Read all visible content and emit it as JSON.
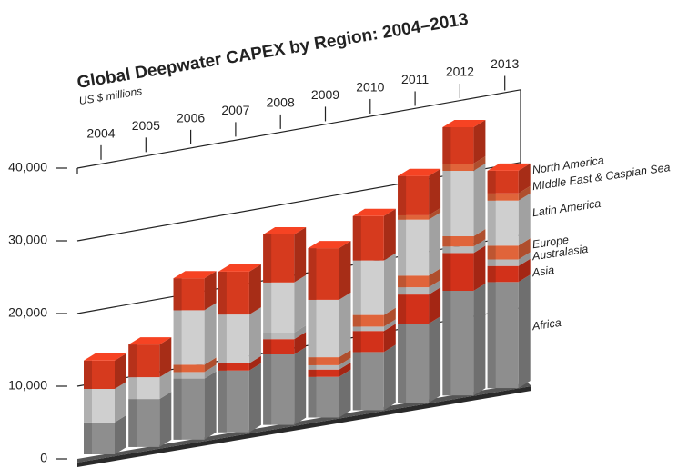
{
  "chart_data": {
    "type": "bar3d-stacked",
    "title": "Global Deepwater CAPEX by Region: 2004–2013",
    "subtitle": "US $ millions",
    "categories": [
      "2004",
      "2005",
      "2006",
      "2007",
      "2008",
      "2009",
      "2010",
      "2011",
      "2012",
      "2013"
    ],
    "series": [
      {
        "name": "Africa",
        "color": "#8e8e8e",
        "values": [
          4400,
          6600,
          8400,
          8500,
          9700,
          5600,
          8000,
          10900,
          14400,
          14600
        ]
      },
      {
        "name": "Asia",
        "color": "#d2311a",
        "values": [
          0,
          0,
          0,
          1000,
          2100,
          1000,
          2900,
          4000,
          5200,
          2200
        ]
      },
      {
        "name": "Australasia",
        "color": "#bcbcbc",
        "values": [
          0,
          0,
          900,
          0,
          900,
          600,
          600,
          1000,
          900,
          900
        ]
      },
      {
        "name": "Europe",
        "color": "#e0643a",
        "values": [
          0,
          0,
          1000,
          0,
          0,
          1100,
          1600,
          1600,
          1400,
          1900
        ]
      },
      {
        "name": "Latin America",
        "color": "#cfcfcf",
        "values": [
          4600,
          3000,
          7500,
          6700,
          6900,
          7900,
          7500,
          7700,
          9000,
          6200
        ]
      },
      {
        "name": "MIddle East & Caspian Sea",
        "color": "#e0643a",
        "values": [
          0,
          0,
          0,
          0,
          0,
          0,
          0,
          600,
          1000,
          1000
        ]
      },
      {
        "name": "North America",
        "color": "#d63a1e",
        "values": [
          3900,
          4500,
          4400,
          5900,
          6600,
          7100,
          6100,
          5400,
          5000,
          3100
        ]
      }
    ],
    "ylim": [
      0,
      40000
    ],
    "yticks": [
      0,
      {
        "value": 10000,
        "label": "10,000"
      },
      {
        "value": 20000,
        "label": "20,000"
      },
      {
        "value": 30000,
        "label": "30,000"
      },
      {
        "value": 40000,
        "label": "40,000"
      }
    ],
    "grid": true
  }
}
